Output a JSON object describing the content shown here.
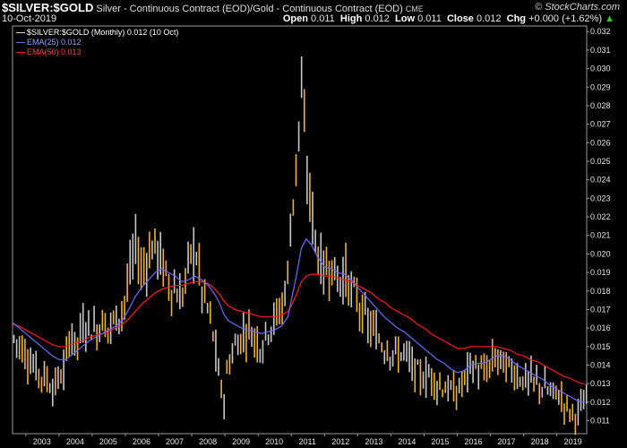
{
  "header": {
    "symbol": "$SILVER:$GOLD",
    "title": "Silver - Continuous Contract (EOD)/Gold - Continuous Contract (EOD)",
    "exchange": "CME",
    "brand": "© StockCharts.com",
    "date": "10-Oct-2019",
    "open_label": "Open",
    "open_value": "0.011",
    "high_label": "High",
    "high_value": "0.012",
    "low_label": "Low",
    "low_value": "0.011",
    "close_label": "Close",
    "close_value": "0.012",
    "chg_label": "Chg",
    "chg_value": "+0.000 (+1.62%)"
  },
  "legend": {
    "main": "$SILVER:$GOLD (Monthly) 0.012 (10 Oct)",
    "ema25": "EMA(25) 0.012",
    "ema50": "EMA(50) 0.013"
  },
  "colors": {
    "background": "#000000",
    "bar_up": "#f0b030",
    "bar_down": "#c8c8c8",
    "ema25": "#6b6bff",
    "ema50": "#ff1a1a"
  },
  "chart_data": {
    "type": "line",
    "ylim": [
      0.0103,
      0.0323
    ],
    "xlim": [
      2002.6,
      2019.9
    ],
    "y_scale": "linear",
    "grid": false,
    "legend_position": "top-left",
    "y_axis_side": "right",
    "yticks": [
      "0.011",
      "0.012",
      "0.013",
      "0.014",
      "0.015",
      "0.016",
      "0.017",
      "0.018",
      "0.019",
      "0.020",
      "0.021",
      "0.022",
      "0.023",
      "0.024",
      "0.025",
      "0.026",
      "0.027",
      "0.028",
      "0.029",
      "0.030",
      "0.031",
      "0.032"
    ],
    "xticks": [
      "2003",
      "2004",
      "2005",
      "2006",
      "2007",
      "2008",
      "2009",
      "2010",
      "2011",
      "2012",
      "2013",
      "2014",
      "2015",
      "2016",
      "2017",
      "2018",
      "2019"
    ],
    "x": [
      2002.6,
      2002.8,
      2003.0,
      2003.2,
      2003.4,
      2003.6,
      2003.8,
      2004.0,
      2004.2,
      2004.35,
      2004.5,
      2004.7,
      2004.9,
      2005.1,
      2005.3,
      2005.5,
      2005.7,
      2005.9,
      2006.1,
      2006.3,
      2006.5,
      2006.7,
      2006.9,
      2007.1,
      2007.3,
      2007.5,
      2007.7,
      2007.9,
      2008.1,
      2008.3,
      2008.5,
      2008.7,
      2008.85,
      2008.95,
      2009.1,
      2009.3,
      2009.5,
      2009.7,
      2009.9,
      2010.1,
      2010.3,
      2010.5,
      2010.7,
      2010.9,
      2011.0,
      2011.15,
      2011.3,
      2011.45,
      2011.6,
      2011.8,
      2012.0,
      2012.2,
      2012.4,
      2012.6,
      2012.8,
      2013.0,
      2013.2,
      2013.4,
      2013.6,
      2013.8,
      2014.0,
      2014.2,
      2014.4,
      2014.6,
      2014.8,
      2015.0,
      2015.2,
      2015.4,
      2015.6,
      2015.8,
      2016.0,
      2016.2,
      2016.4,
      2016.6,
      2016.8,
      2017.0,
      2017.2,
      2017.4,
      2017.6,
      2017.8,
      2018.0,
      2018.2,
      2018.4,
      2018.6,
      2018.8,
      2019.0,
      2019.2,
      2019.4,
      2019.6,
      2019.75,
      2019.85
    ],
    "series": [
      {
        "values": [
          0.0155,
          0.0152,
          0.0146,
          0.014,
          0.0136,
          0.0133,
          0.0128,
          0.0132,
          0.014,
          0.016,
          0.015,
          0.016,
          0.0162,
          0.0158,
          0.0164,
          0.016,
          0.0165,
          0.017,
          0.0185,
          0.0205,
          0.019,
          0.02,
          0.0205,
          0.0195,
          0.0185,
          0.018,
          0.0175,
          0.0195,
          0.0205,
          0.018,
          0.017,
          0.015,
          0.013,
          0.012,
          0.014,
          0.015,
          0.0155,
          0.016,
          0.0155,
          0.015,
          0.016,
          0.0165,
          0.017,
          0.019,
          0.022,
          0.025,
          0.029,
          0.0245,
          0.0225,
          0.02,
          0.019,
          0.0195,
          0.0185,
          0.019,
          0.018,
          0.0175,
          0.0165,
          0.016,
          0.0155,
          0.015,
          0.0148,
          0.0145,
          0.0148,
          0.014,
          0.0135,
          0.0133,
          0.0135,
          0.013,
          0.0128,
          0.0126,
          0.0125,
          0.0132,
          0.014,
          0.0138,
          0.0135,
          0.014,
          0.0145,
          0.014,
          0.0138,
          0.0135,
          0.0132,
          0.0132,
          0.013,
          0.0128,
          0.0125,
          0.0125,
          0.012,
          0.0115,
          0.0113,
          0.0118,
          0.012
        ]
      },
      {
        "name": "EMA(25)",
        "values": [
          0.0163,
          0.016,
          0.0157,
          0.0154,
          0.0151,
          0.0148,
          0.0145,
          0.0143,
          0.0143,
          0.0145,
          0.0147,
          0.015,
          0.0153,
          0.0155,
          0.0157,
          0.0159,
          0.0161,
          0.0164,
          0.017,
          0.0177,
          0.0182,
          0.0186,
          0.019,
          0.0192,
          0.019,
          0.0188,
          0.0185,
          0.0186,
          0.0188,
          0.0186,
          0.0183,
          0.0178,
          0.0173,
          0.0168,
          0.0164,
          0.0162,
          0.016,
          0.0159,
          0.0158,
          0.0157,
          0.0158,
          0.0159,
          0.0161,
          0.0166,
          0.0175,
          0.0188,
          0.0203,
          0.0208,
          0.0205,
          0.0198,
          0.0193,
          0.0192,
          0.019,
          0.0189,
          0.0186,
          0.0182,
          0.0178,
          0.0174,
          0.017,
          0.0166,
          0.0163,
          0.016,
          0.0158,
          0.0155,
          0.0152,
          0.0149,
          0.0146,
          0.0143,
          0.0141,
          0.0138,
          0.0136,
          0.0137,
          0.014,
          0.0141,
          0.0141,
          0.0143,
          0.0145,
          0.0145,
          0.0143,
          0.014,
          0.0138,
          0.0136,
          0.0134,
          0.0132,
          0.0129,
          0.0127,
          0.0125,
          0.0123,
          0.0121,
          0.012,
          0.012
        ]
      },
      {
        "name": "EMA(50)",
        "values": [
          0.0162,
          0.0161,
          0.0159,
          0.0157,
          0.0155,
          0.0153,
          0.0151,
          0.015,
          0.015,
          0.0151,
          0.0152,
          0.0153,
          0.0155,
          0.0156,
          0.0157,
          0.0158,
          0.016,
          0.0162,
          0.0165,
          0.0169,
          0.0173,
          0.0176,
          0.0179,
          0.0181,
          0.0182,
          0.0183,
          0.0183,
          0.0184,
          0.0185,
          0.0185,
          0.0184,
          0.0181,
          0.0178,
          0.0175,
          0.0172,
          0.017,
          0.0169,
          0.0168,
          0.0167,
          0.0166,
          0.0166,
          0.0166,
          0.0167,
          0.0169,
          0.0172,
          0.0178,
          0.0185,
          0.0188,
          0.0189,
          0.0189,
          0.0188,
          0.0188,
          0.0187,
          0.0186,
          0.0185,
          0.0183,
          0.0181,
          0.0179,
          0.0176,
          0.0174,
          0.0171,
          0.0169,
          0.0167,
          0.0165,
          0.0162,
          0.016,
          0.0157,
          0.0155,
          0.0153,
          0.0151,
          0.0149,
          0.0149,
          0.015,
          0.015,
          0.015,
          0.015,
          0.015,
          0.0149,
          0.0148,
          0.0146,
          0.0145,
          0.0143,
          0.0142,
          0.014,
          0.0138,
          0.0136,
          0.0134,
          0.0133,
          0.0131,
          0.013,
          0.013
        ]
      }
    ]
  }
}
